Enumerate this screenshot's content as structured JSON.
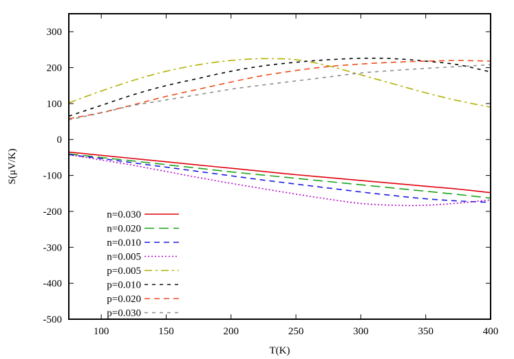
{
  "chart_data": {
    "type": "line",
    "title": "",
    "xlabel": "T(K)",
    "ylabel": "S(μV/K)",
    "xlim": [
      75,
      400
    ],
    "ylim": [
      -500,
      350
    ],
    "xticks": [
      100,
      150,
      200,
      250,
      300,
      350,
      400
    ],
    "yticks": [
      -500,
      -400,
      -300,
      -200,
      -100,
      0,
      100,
      200,
      300
    ],
    "grid": false,
    "legend_position": "bottom-left",
    "x": [
      75,
      100,
      125,
      150,
      175,
      200,
      225,
      250,
      275,
      300,
      325,
      350,
      375,
      400
    ],
    "series": [
      {
        "name": "n=0.030",
        "color": "#e0000d",
        "dash": "solid",
        "values": [
          -35,
          -44,
          -53,
          -62,
          -71,
          -80,
          -89,
          -98,
          -106,
          -114,
          -122,
          -130,
          -138,
          -148
        ]
      },
      {
        "name": "n=0.020",
        "color": "#1aa31a",
        "dash": "long",
        "values": [
          -40,
          -50,
          -60,
          -70,
          -80,
          -90,
          -99,
          -108,
          -117,
          -126,
          -135,
          -144,
          -153,
          -163
        ]
      },
      {
        "name": "n=0.010",
        "color": "#1a1ae0",
        "dash": "medium",
        "values": [
          -42,
          -53,
          -65,
          -77,
          -89,
          -101,
          -113,
          -124,
          -135,
          -146,
          -156,
          -165,
          -171,
          -175
        ]
      },
      {
        "name": "n=0.005",
        "color": "#b000c8",
        "dash": "dotted",
        "values": [
          -42,
          -57,
          -72,
          -89,
          -106,
          -122,
          -137,
          -152,
          -166,
          -178,
          -183,
          -183,
          -177,
          -168
        ]
      },
      {
        "name": "p=0.005",
        "color": "#b5b000",
        "dash": "dashdot",
        "values": [
          102,
          135,
          165,
          190,
          208,
          220,
          225,
          222,
          205,
          180,
          155,
          130,
          108,
          90
        ]
      },
      {
        "name": "p=0.010",
        "color": "#000000",
        "dash": "short",
        "values": [
          65,
          95,
          125,
          150,
          170,
          190,
          205,
          215,
          222,
          226,
          225,
          218,
          208,
          188
        ]
      },
      {
        "name": "p=0.020",
        "color": "#f04a1a",
        "dash": "medium",
        "values": [
          58,
          75,
          97,
          120,
          140,
          160,
          178,
          192,
          203,
          210,
          215,
          218,
          220,
          218
        ]
      },
      {
        "name": "p=0.030",
        "color": "#8c8c8c",
        "dash": "short",
        "values": [
          55,
          74,
          95,
          110,
          125,
          140,
          152,
          163,
          174,
          185,
          192,
          198,
          203,
          208
        ]
      }
    ]
  }
}
